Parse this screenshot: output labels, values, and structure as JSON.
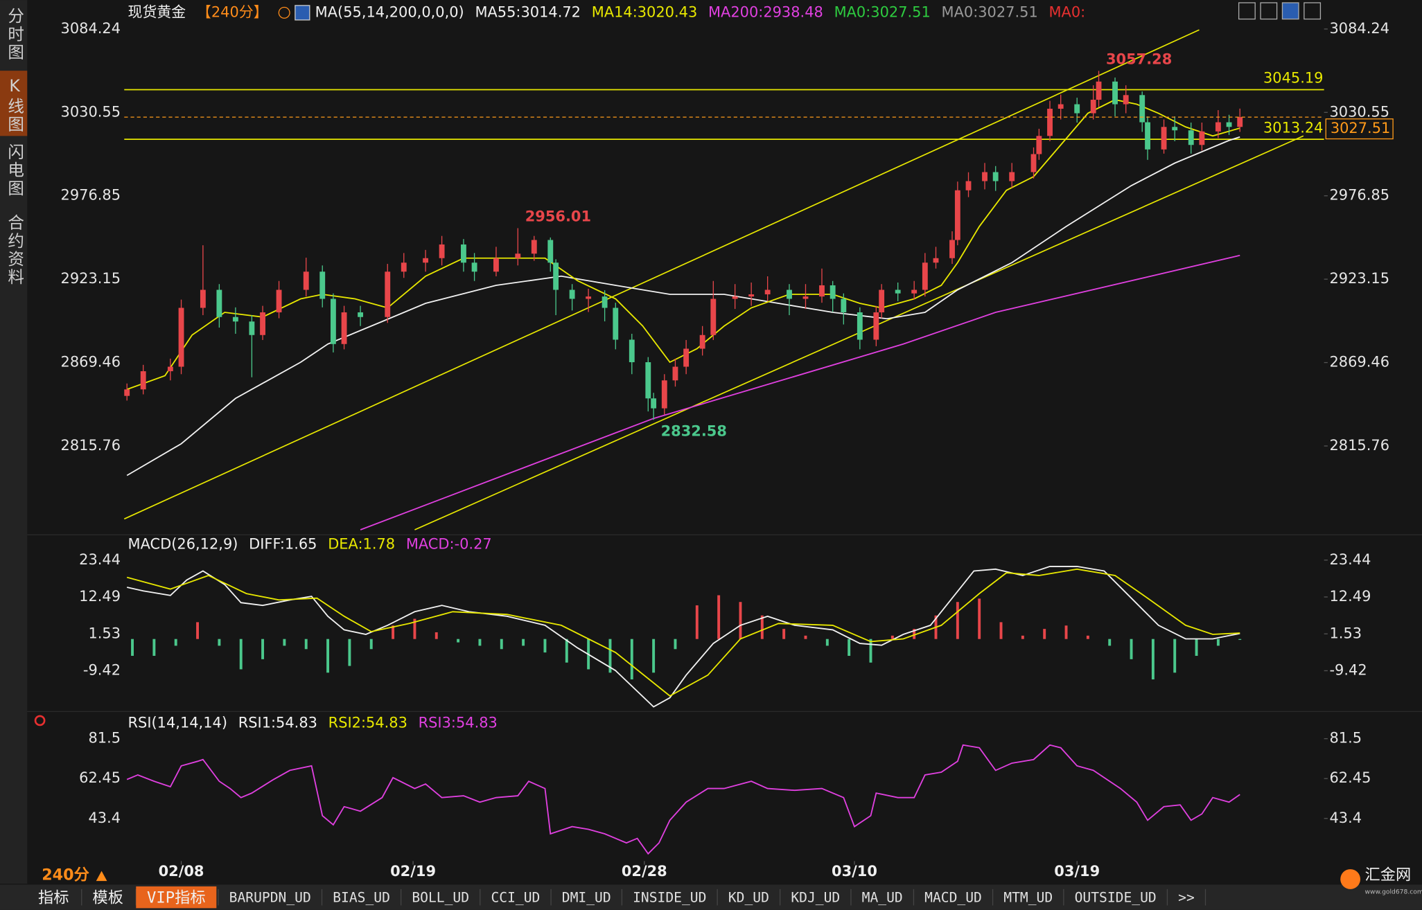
{
  "chart_data": [
    {
      "type": "candlestick",
      "title": "现货黄金",
      "period": "【240分】",
      "indicator": "MA(55,14,200,0,0,0)",
      "xlim": [
        -0.5,
        220.5
      ],
      "xticks": [
        {
          "value": 10,
          "label": "02/08"
        },
        {
          "value": 52.7,
          "label": "02/19"
        },
        {
          "value": 95.3,
          "label": "02/28"
        },
        {
          "value": 134,
          "label": "03/10"
        },
        {
          "value": 175,
          "label": "03/19"
        }
      ],
      "ylim": [
        2758.6,
        3102.9
      ],
      "yticks": [
        2815.76,
        2869.46,
        2923.15,
        2976.85,
        3030.55,
        3084.24
      ],
      "up_color": "#e8464a",
      "down_color": "#4bc88c",
      "line_color": "#e8e800",
      "x": [
        0,
        3,
        8,
        10,
        14,
        17,
        20,
        23,
        25,
        28,
        33,
        36,
        38,
        40,
        43,
        48,
        51,
        55,
        58,
        62,
        64,
        68,
        72,
        75,
        78,
        79,
        82,
        85,
        88,
        90,
        93,
        96,
        97,
        99,
        101,
        103,
        106,
        108,
        112,
        115,
        118,
        122,
        125,
        128,
        130,
        132,
        135,
        138,
        139,
        142,
        145,
        147,
        149,
        152,
        153,
        155,
        158,
        160,
        163,
        167,
        168,
        170,
        172,
        175,
        178,
        179,
        182,
        184,
        187,
        188,
        191,
        193,
        196,
        198,
        201,
        203,
        205
      ],
      "open": [
        2848,
        2852.2,
        2863.9,
        2866.8,
        2904.7,
        2916.3,
        2898.8,
        2895.9,
        2887.2,
        2901.8,
        2916.3,
        2928.0,
        2910.5,
        2881.4,
        2901.8,
        2898.8,
        2928.0,
        2933.8,
        2936.7,
        2945.5,
        2933.8,
        2928.0,
        2936.7,
        2939.6,
        2948.4,
        2933.8,
        2916.3,
        2910.5,
        2912,
        2904.7,
        2884.2,
        2869.7,
        2846.4,
        2840,
        2858.0,
        2866.8,
        2878.4,
        2887.2,
        2910.5,
        2912,
        2913.4,
        2916.3,
        2910.5,
        2912,
        2919.2,
        2910.5,
        2901.8,
        2884.2,
        2901.8,
        2916.3,
        2914,
        2916.3,
        2933.8,
        2936.7,
        2948.4,
        2980.4,
        2986.3,
        2992.1,
        2986.3,
        2992.1,
        3003.7,
        3015.4,
        3032.9,
        3035.8,
        3030.0,
        3038.7,
        3050.4,
        3035.8,
        3041.7,
        3024.2,
        3006.7,
        3021.2,
        3019,
        3009.6,
        3018.3,
        3024.2,
        3021.2
      ],
      "high": [
        2856,
        2868,
        2872,
        2910,
        2945,
        2920,
        2905,
        2900,
        2906,
        2922,
        2937,
        2932,
        2914,
        2906,
        2906,
        2933,
        2940,
        2942,
        2951,
        2949,
        2940,
        2944,
        2956.01,
        2951,
        2950,
        2936,
        2920,
        2917,
        2916,
        2908,
        2888,
        2873,
        2850,
        2862,
        2872,
        2884,
        2893,
        2922,
        2920,
        2921,
        2925,
        2920,
        2920,
        2930,
        2922,
        2914,
        2905,
        2906,
        2920,
        2921,
        2922,
        2940,
        2944,
        2954,
        2986,
        2992,
        2998,
        2996,
        2998,
        3008,
        3020,
        3038,
        3042,
        3040,
        3048,
        3057.28,
        3053,
        3048,
        3044,
        3028,
        3026,
        3028,
        3024,
        3024,
        3032,
        3029,
        3033
      ],
      "low": [
        2845,
        2849,
        2858,
        2862,
        2900,
        2892,
        2888,
        2860,
        2884,
        2898,
        2912,
        2905,
        2876,
        2878,
        2893,
        2895,
        2924,
        2928,
        2932,
        2928,
        2922,
        2925,
        2932,
        2935,
        2928,
        2900,
        2903,
        2902,
        2896,
        2878,
        2862,
        2838,
        2832.58,
        2836,
        2854,
        2862,
        2874,
        2884,
        2904,
        2906,
        2909,
        2900,
        2904,
        2908,
        2902,
        2894,
        2878,
        2880,
        2898,
        2909,
        2910,
        2912,
        2930,
        2933,
        2945,
        2976,
        2981,
        2980,
        2982,
        2988,
        3000,
        3012,
        3026,
        3024,
        3026,
        3034,
        3028,
        3030,
        3018,
        3000,
        3004,
        3012,
        3004,
        3006,
        3014,
        3016,
        3018
      ],
      "close": [
        2852.2,
        2863.9,
        2866.8,
        2904.7,
        2916.3,
        2898.8,
        2895.9,
        2887.2,
        2901.8,
        2916.3,
        2928.0,
        2910.5,
        2881.4,
        2901.8,
        2898.8,
        2928.0,
        2933.8,
        2936.7,
        2945.5,
        2933.8,
        2928.0,
        2936.7,
        2939.6,
        2948.4,
        2933.8,
        2916.3,
        2910.5,
        2912,
        2904.7,
        2884.2,
        2869.7,
        2846.4,
        2840,
        2858.0,
        2866.8,
        2878.4,
        2887.2,
        2910.5,
        2912,
        2913.4,
        2916.3,
        2910.5,
        2912,
        2919.2,
        2910.5,
        2901.8,
        2884.2,
        2901.8,
        2916.3,
        2914,
        2916.3,
        2933.8,
        2936.7,
        2948.4,
        2980.4,
        2986.3,
        2992.1,
        2986.3,
        2992.1,
        3003.7,
        3015.4,
        3032.9,
        3035.8,
        3030.0,
        3038.7,
        3050.4,
        3035.8,
        3041.7,
        3024.2,
        3006.7,
        3021.2,
        3019,
        3009.6,
        3018.3,
        3024.2,
        3021.2,
        3027.51
      ],
      "series": [
        {
          "name": "MA55:3014.72",
          "color": "#f2f2f2",
          "x": [
            0,
            10,
            20,
            32,
            37,
            47,
            55,
            68,
            80,
            90,
            100,
            110,
            120,
            130,
            140,
            147,
            153,
            163,
            173,
            185,
            193,
            203,
            205
          ],
          "values": [
            2796.8,
            2817.2,
            2846.4,
            2869.7,
            2881.4,
            2895.9,
            2907.6,
            2919.2,
            2925.1,
            2919.2,
            2913.4,
            2913.4,
            2907.6,
            2901.8,
            2897.7,
            2901.8,
            2916.3,
            2933.8,
            2957.1,
            2983.4,
            2997.9,
            3012.5,
            3014.72
          ]
        },
        {
          "name": "MA14:3020.43",
          "color": "#e8e800",
          "x": [
            0,
            7,
            12,
            18,
            25,
            32,
            36,
            42,
            48,
            55,
            62,
            70,
            77,
            83,
            90,
            95,
            100,
            105,
            110,
            115,
            122,
            130,
            135,
            139,
            145,
            150,
            153,
            157,
            162,
            167,
            172,
            177,
            182,
            186,
            190,
            195,
            200,
            205
          ],
          "values": [
            2852.2,
            2861.0,
            2887.2,
            2901.8,
            2898.8,
            2910.5,
            2913.4,
            2910.5,
            2904.7,
            2925.1,
            2936.7,
            2936.7,
            2936.7,
            2922.2,
            2910.5,
            2893.0,
            2869.7,
            2878.4,
            2893.0,
            2904.7,
            2913.4,
            2913.4,
            2907.6,
            2904.7,
            2910.5,
            2919.2,
            2933.8,
            2957.1,
            2980.4,
            2989.2,
            3009.6,
            3030.0,
            3038.7,
            3035.8,
            3030.0,
            3021.2,
            3015.4,
            3020.43
          ]
        },
        {
          "name": "MA200:2938.48",
          "color": "#e040e0",
          "x": [
            43,
            97,
            143,
            160,
            205
          ],
          "values": [
            2761.8,
            2833.5,
            2881.4,
            2901.8,
            2938.48
          ]
        }
      ],
      "legend_suffix": [
        {
          "text": "MA0:3027.51",
          "color": "#2ecc40"
        },
        {
          "text": "MA0:3027.51",
          "color": "#9a9a9a"
        },
        {
          "text": "MA0:",
          "color": "#e83030"
        }
      ],
      "hlines": [
        3045.19,
        3013.24
      ],
      "trendlines": [
        {
          "x": [
            -0.5,
            197.5
          ],
          "values": [
            2768.8,
            3083.7
          ]
        },
        {
          "x": [
            53,
            216.7
          ],
          "values": [
            2761.8,
            3015.4
          ]
        }
      ],
      "last_price": 3027.51,
      "last_price_color": "#ff9a1a",
      "annotations": [
        {
          "x": 179,
          "value": 3057.28,
          "color": "#e8464a"
        },
        {
          "x": 72,
          "value": 2956.01,
          "color": "#e8464a"
        },
        {
          "x": 97,
          "value": 2832.58,
          "color": "#4bc88c"
        }
      ]
    },
    {
      "type": "macd",
      "title": "MACD(26,12,9)",
      "xlim": [
        -0.5,
        220.5
      ],
      "ylim": [
        -21.53,
        30.97
      ],
      "yticks": [
        -9.42,
        1.53,
        12.49,
        23.44
      ],
      "series": [
        {
          "name": "DIFF:1.65",
          "color": "#f2f2f2",
          "x": [
            0,
            3,
            8,
            11,
            14,
            18,
            21,
            25,
            30,
            34,
            37,
            40,
            44,
            48,
            53,
            58,
            63,
            70,
            77,
            83,
            90,
            97,
            100,
            103,
            108,
            113,
            118,
            123,
            130,
            135,
            139,
            143,
            148,
            152,
            156,
            160,
            165,
            170,
            175,
            180,
            185,
            190,
            195,
            200,
            205
          ],
          "values": [
            15.37,
            14.29,
            12.95,
            17.52,
            20.21,
            16.18,
            10.8,
            9.99,
            11.6,
            12.68,
            6.76,
            2.73,
            1.38,
            4.07,
            8.11,
            9.99,
            8.11,
            6.76,
            4.07,
            -2.65,
            -9.38,
            -20.14,
            -17.45,
            -10.72,
            -1.31,
            4.07,
            6.76,
            4.07,
            2.73,
            -1.31,
            -1.85,
            1.38,
            4.07,
            12.14,
            20.21,
            20.75,
            18.87,
            21.56,
            21.56,
            20.21,
            12.14,
            4.07,
            0.04,
            0.04,
            1.65
          ]
        },
        {
          "name": "DEA:1.78",
          "color": "#e8e800",
          "x": [
            0,
            8,
            15,
            22,
            28,
            35,
            40,
            45,
            52,
            60,
            70,
            80,
            90,
            100,
            107,
            113,
            120,
            130,
            137,
            143,
            150,
            157,
            162,
            168,
            175,
            182,
            188,
            195,
            200,
            205
          ],
          "values": [
            18.33,
            14.83,
            18.87,
            13.49,
            11.6,
            12.14,
            6.76,
            2.19,
            4.61,
            8.11,
            7.3,
            4.07,
            -4.0,
            -16.91,
            -10.72,
            0.04,
            4.61,
            4.07,
            -0.77,
            0.04,
            4.07,
            13.49,
            19.67,
            18.87,
            20.75,
            18.87,
            12.14,
            4.07,
            1.38,
            1.78
          ]
        },
        {
          "name": "MACD:-0.27",
          "color": "#e040e0",
          "type": "bar",
          "up_color": "#e8464a",
          "down_color": "#4bc88c",
          "x": [
            1,
            5,
            9,
            13,
            17,
            21,
            25,
            29,
            33,
            37,
            41,
            45,
            49,
            53,
            57,
            61,
            65,
            69,
            73,
            77,
            81,
            85,
            89,
            93,
            97,
            101,
            105,
            109,
            113,
            117,
            121,
            125,
            129,
            133,
            137,
            141,
            145,
            149,
            153,
            157,
            161,
            165,
            169,
            173,
            177,
            181,
            185,
            189,
            193,
            197,
            201,
            205
          ],
          "values": [
            -5,
            -5,
            -2,
            5,
            -2,
            -9,
            -6,
            -2,
            -3,
            -10,
            -8,
            -3,
            4,
            6,
            2,
            -1,
            -2,
            -3,
            -2,
            -4,
            -7,
            -9,
            -10,
            -12,
            -10,
            -3,
            10,
            13,
            11,
            7,
            3,
            1,
            -2,
            -5,
            -7,
            1,
            3,
            7,
            11,
            12,
            5,
            1,
            3,
            4,
            1,
            -2,
            -6,
            -12,
            -10,
            -5,
            -2,
            -0.27
          ]
        }
      ]
    },
    {
      "type": "line",
      "title": "RSI(14,14,14)",
      "xlim": [
        -0.5,
        220.5
      ],
      "ylim": [
        23.05,
        94.49
      ],
      "yticks": [
        43.4,
        62.45,
        81.5
      ],
      "legend_prefix": [
        {
          "text": "RSI1:54.83",
          "color": "#f2f2f2"
        },
        {
          "text": "RSI2:54.83",
          "color": "#e8e800"
        }
      ],
      "series": [
        {
          "name": "RSI3:54.83",
          "color": "#e040e0",
          "x": [
            0,
            2,
            5,
            8,
            10,
            13,
            14,
            17,
            19,
            21,
            23,
            27,
            30,
            34,
            36,
            38,
            40,
            43,
            47,
            49,
            53,
            55,
            58,
            62,
            65,
            68,
            72,
            74,
            77,
            78,
            82,
            85,
            88,
            92,
            94,
            96,
            98,
            100,
            103,
            107,
            110,
            115,
            118,
            123,
            128,
            132,
            134,
            137,
            138,
            142,
            145,
            147,
            150,
            153,
            154,
            157,
            160,
            163,
            167,
            170,
            172,
            175,
            178,
            183,
            186,
            188,
            191,
            194,
            196,
            198,
            200,
            203,
            205
          ],
          "values": [
            62.01,
            64.18,
            61.15,
            58.55,
            68.51,
            70.68,
            71.54,
            61.15,
            57.69,
            53.36,
            55.52,
            62.01,
            66.35,
            68.51,
            44.7,
            40.37,
            49.03,
            46.86,
            53.36,
            62.88,
            57.69,
            59.85,
            53.36,
            54.22,
            51.19,
            53.36,
            54.22,
            61.15,
            57.69,
            36.04,
            39.5,
            38.2,
            36.04,
            31.71,
            33.87,
            26.51,
            31.71,
            42.53,
            51.19,
            57.69,
            57.69,
            61.15,
            57.69,
            56.82,
            57.69,
            53.36,
            39.5,
            44.7,
            55.52,
            53.36,
            53.36,
            64.18,
            65.48,
            70.68,
            78.47,
            77.17,
            66.35,
            69.81,
            71.54,
            78.47,
            77.17,
            68.51,
            66.35,
            57.69,
            51.19,
            42.53,
            49.03,
            49.89,
            42.53,
            45.56,
            53.36,
            51.19,
            54.83
          ]
        }
      ]
    }
  ],
  "ui": {
    "sidebar": [
      "分时图",
      "K线图",
      "闪电图",
      "合约资料"
    ],
    "sidebar_active": 1,
    "period_selector": "240分",
    "tabs": [
      "指标",
      "模板",
      "VIP指标",
      "BARUPDN_UD",
      "BIAS_UD",
      "BOLL_UD",
      "CCI_UD",
      "DMI_UD",
      "INSIDE_UD",
      "KD_UD",
      "KDJ_UD",
      "MA_UD",
      "MACD_UD",
      "MTM_UD",
      "OUTSIDE_UD",
      ">>"
    ],
    "tabs_active": 2,
    "brand": "汇金网",
    "brand_url": "www.gold678.com"
  }
}
